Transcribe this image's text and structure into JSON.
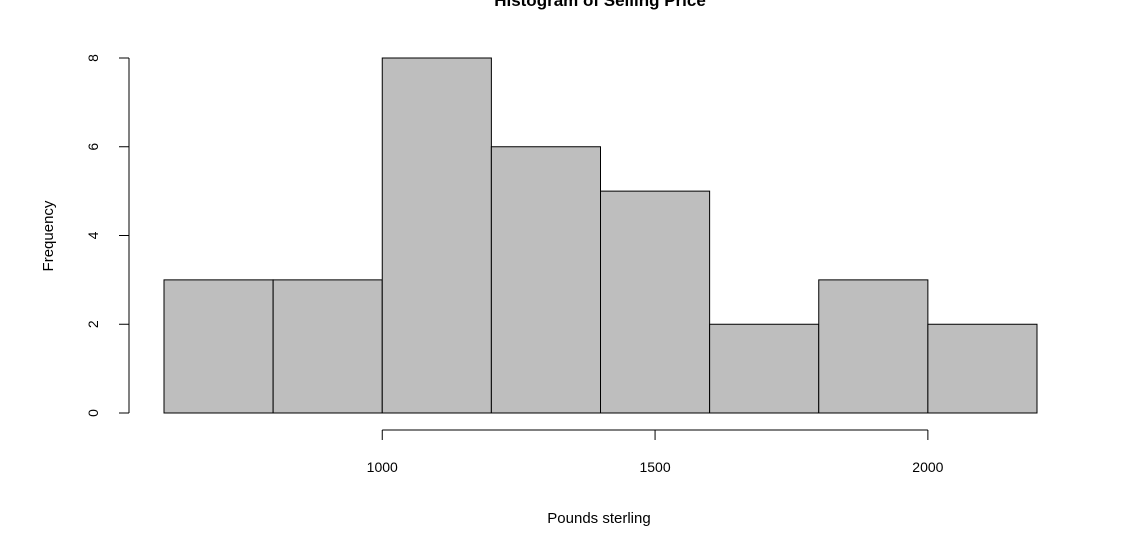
{
  "chart_data": {
    "type": "bar",
    "title": "Histogram of Selling Price",
    "xlabel": "Pounds sterling",
    "ylabel": "Frequency",
    "bins": [
      {
        "start": 600,
        "end": 800,
        "count": 3
      },
      {
        "start": 800,
        "end": 1000,
        "count": 3
      },
      {
        "start": 1000,
        "end": 1200,
        "count": 8
      },
      {
        "start": 1200,
        "end": 1400,
        "count": 6
      },
      {
        "start": 1400,
        "end": 1600,
        "count": 5
      },
      {
        "start": 1600,
        "end": 1800,
        "count": 2
      },
      {
        "start": 1800,
        "end": 2000,
        "count": 3
      },
      {
        "start": 2000,
        "end": 2200,
        "count": 2
      }
    ],
    "xticks": [
      1000,
      1500,
      2000
    ],
    "yticks": [
      0,
      2,
      4,
      6,
      8
    ],
    "xlim": [
      600,
      2200
    ],
    "ylim": [
      0,
      8
    ],
    "bar_color": "#bebebe",
    "grid": false,
    "legend": "none"
  }
}
